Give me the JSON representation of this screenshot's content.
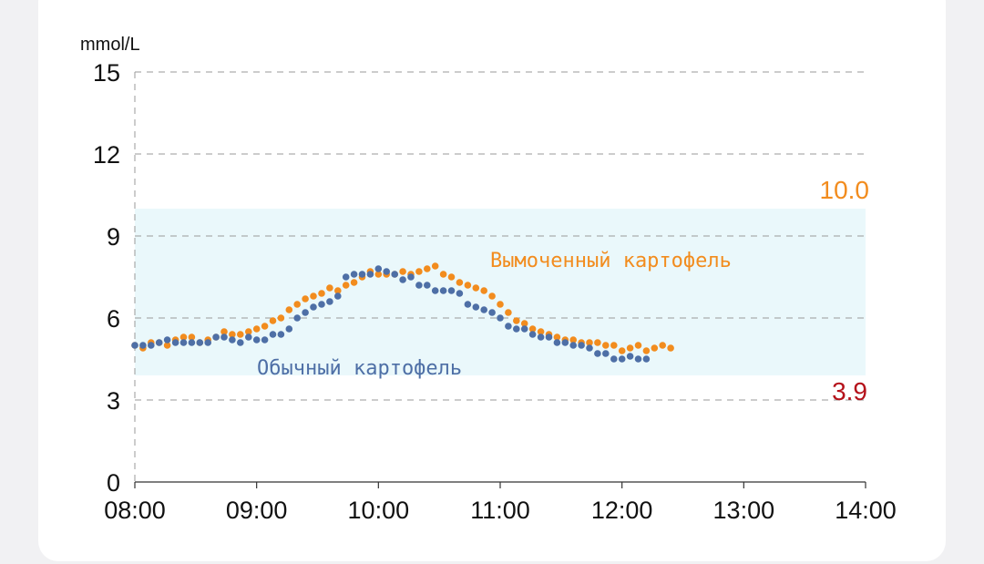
{
  "chart_data": {
    "type": "scatter",
    "ylabel": "mmol/L",
    "ylim": [
      0,
      15
    ],
    "yticks": [
      "15",
      "12",
      "9",
      "6",
      "3",
      "0"
    ],
    "xticks": [
      "08:00",
      "09:00",
      "10:00",
      "11:00",
      "12:00",
      "13:00",
      "14:00"
    ],
    "target_range": {
      "low": 3.9,
      "high": 10.0,
      "low_label": "3.9",
      "high_label": "10.0",
      "color": "#eaf8fb"
    },
    "grid": "dashed horizontal",
    "series": [
      {
        "name": "Вымоченный картофель",
        "color": "#f28c1e",
        "points": [
          [
            "08:00",
            5.0
          ],
          [
            "08:04",
            4.9
          ],
          [
            "08:08",
            5.1
          ],
          [
            "08:12",
            5.1
          ],
          [
            "08:16",
            5.0
          ],
          [
            "08:20",
            5.2
          ],
          [
            "08:24",
            5.3
          ],
          [
            "08:28",
            5.3
          ],
          [
            "08:32",
            5.1
          ],
          [
            "08:36",
            5.2
          ],
          [
            "08:40",
            5.3
          ],
          [
            "08:44",
            5.5
          ],
          [
            "08:48",
            5.4
          ],
          [
            "08:52",
            5.4
          ],
          [
            "08:56",
            5.5
          ],
          [
            "09:00",
            5.6
          ],
          [
            "09:04",
            5.7
          ],
          [
            "09:08",
            5.9
          ],
          [
            "09:12",
            6.0
          ],
          [
            "09:16",
            6.3
          ],
          [
            "09:20",
            6.5
          ],
          [
            "09:24",
            6.7
          ],
          [
            "09:28",
            6.8
          ],
          [
            "09:32",
            6.9
          ],
          [
            "09:36",
            7.1
          ],
          [
            "09:40",
            7.0
          ],
          [
            "09:44",
            7.2
          ],
          [
            "09:48",
            7.3
          ],
          [
            "09:52",
            7.5
          ],
          [
            "09:56",
            7.7
          ],
          [
            "10:00",
            7.6
          ],
          [
            "10:04",
            7.6
          ],
          [
            "10:08",
            7.6
          ],
          [
            "10:12",
            7.7
          ],
          [
            "10:16",
            7.6
          ],
          [
            "10:20",
            7.7
          ],
          [
            "10:24",
            7.8
          ],
          [
            "10:28",
            7.9
          ],
          [
            "10:32",
            7.6
          ],
          [
            "10:36",
            7.5
          ],
          [
            "10:40",
            7.3
          ],
          [
            "10:44",
            7.2
          ],
          [
            "10:48",
            7.1
          ],
          [
            "10:52",
            7.0
          ],
          [
            "10:56",
            6.8
          ],
          [
            "11:00",
            6.5
          ],
          [
            "11:04",
            6.2
          ],
          [
            "11:08",
            5.9
          ],
          [
            "11:12",
            5.8
          ],
          [
            "11:16",
            5.6
          ],
          [
            "11:20",
            5.5
          ],
          [
            "11:24",
            5.4
          ],
          [
            "11:28",
            5.3
          ],
          [
            "11:32",
            5.2
          ],
          [
            "11:36",
            5.2
          ],
          [
            "11:40",
            5.1
          ],
          [
            "11:44",
            5.1
          ],
          [
            "11:48",
            5.1
          ],
          [
            "11:52",
            5.0
          ],
          [
            "11:56",
            5.0
          ],
          [
            "12:00",
            4.8
          ],
          [
            "12:04",
            4.9
          ],
          [
            "12:08",
            5.0
          ],
          [
            "12:12",
            4.8
          ],
          [
            "12:16",
            4.9
          ],
          [
            "12:20",
            5.0
          ],
          [
            "12:24",
            4.9
          ]
        ]
      },
      {
        "name": "Обычный картофель",
        "color": "#4e6fa6",
        "points": [
          [
            "08:00",
            5.0
          ],
          [
            "08:04",
            5.0
          ],
          [
            "08:08",
            5.0
          ],
          [
            "08:12",
            5.1
          ],
          [
            "08:16",
            5.2
          ],
          [
            "08:20",
            5.1
          ],
          [
            "08:24",
            5.1
          ],
          [
            "08:28",
            5.1
          ],
          [
            "08:32",
            5.1
          ],
          [
            "08:36",
            5.1
          ],
          [
            "08:40",
            5.3
          ],
          [
            "08:44",
            5.3
          ],
          [
            "08:48",
            5.2
          ],
          [
            "08:52",
            5.1
          ],
          [
            "08:56",
            5.3
          ],
          [
            "09:00",
            5.2
          ],
          [
            "09:04",
            5.2
          ],
          [
            "09:08",
            5.4
          ],
          [
            "09:12",
            5.4
          ],
          [
            "09:16",
            5.6
          ],
          [
            "09:20",
            6.0
          ],
          [
            "09:24",
            6.2
          ],
          [
            "09:28",
            6.4
          ],
          [
            "09:32",
            6.5
          ],
          [
            "09:36",
            6.6
          ],
          [
            "09:40",
            6.8
          ],
          [
            "09:44",
            7.5
          ],
          [
            "09:48",
            7.6
          ],
          [
            "09:52",
            7.6
          ],
          [
            "09:56",
            7.6
          ],
          [
            "10:00",
            7.8
          ],
          [
            "10:04",
            7.7
          ],
          [
            "10:08",
            7.6
          ],
          [
            "10:12",
            7.4
          ],
          [
            "10:16",
            7.5
          ],
          [
            "10:20",
            7.2
          ],
          [
            "10:24",
            7.2
          ],
          [
            "10:28",
            7.0
          ],
          [
            "10:32",
            7.0
          ],
          [
            "10:36",
            7.0
          ],
          [
            "10:40",
            6.9
          ],
          [
            "10:44",
            6.5
          ],
          [
            "10:48",
            6.4
          ],
          [
            "10:52",
            6.3
          ],
          [
            "10:56",
            6.2
          ],
          [
            "11:00",
            6.0
          ],
          [
            "11:04",
            5.7
          ],
          [
            "11:08",
            5.6
          ],
          [
            "11:12",
            5.6
          ],
          [
            "11:16",
            5.4
          ],
          [
            "11:20",
            5.3
          ],
          [
            "11:24",
            5.3
          ],
          [
            "11:28",
            5.1
          ],
          [
            "11:32",
            5.1
          ],
          [
            "11:36",
            5.0
          ],
          [
            "11:40",
            5.0
          ],
          [
            "11:44",
            4.9
          ],
          [
            "11:48",
            4.7
          ],
          [
            "11:52",
            4.7
          ],
          [
            "11:56",
            4.5
          ],
          [
            "12:00",
            4.5
          ],
          [
            "12:04",
            4.6
          ],
          [
            "12:08",
            4.5
          ],
          [
            "12:12",
            4.5
          ]
        ]
      }
    ]
  }
}
